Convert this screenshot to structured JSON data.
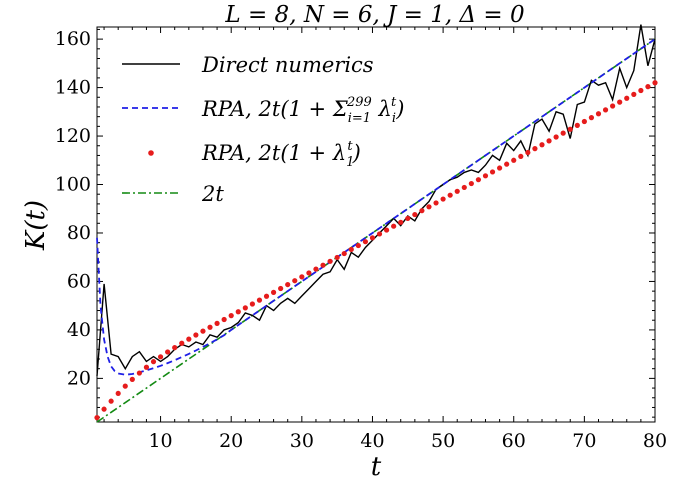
{
  "chart_data": {
    "type": "line",
    "title": "L = 8, N = 6, J = 1, Δ = 0",
    "xlabel": "t",
    "ylabel": "K(t)",
    "xlim": [
      1,
      80
    ],
    "ylim": [
      2,
      165
    ],
    "xticks": [
      10,
      20,
      30,
      40,
      50,
      60,
      70,
      80
    ],
    "yticks": [
      20,
      40,
      60,
      80,
      100,
      120,
      140,
      160
    ],
    "grid": false,
    "legend_position": "top-left",
    "colors": {
      "direct": "#000000",
      "rpa_sum": "#1f1fe6",
      "rpa_1": "#e61c1c",
      "two_t": "#138a13"
    },
    "series": [
      {
        "name": "Direct numerics",
        "style": "solid",
        "x": [
          1,
          2,
          3,
          4,
          5,
          6,
          7,
          8,
          9,
          10,
          11,
          12,
          13,
          14,
          15,
          16,
          17,
          18,
          19,
          20,
          21,
          22,
          23,
          24,
          25,
          26,
          27,
          28,
          29,
          30,
          31,
          32,
          33,
          34,
          35,
          36,
          37,
          38,
          39,
          40,
          41,
          42,
          43,
          44,
          45,
          46,
          47,
          48,
          49,
          50,
          51,
          52,
          53,
          54,
          55,
          56,
          57,
          58,
          59,
          60,
          61,
          62,
          63,
          64,
          65,
          66,
          67,
          68,
          69,
          70,
          71,
          72,
          73,
          74,
          75,
          76,
          77,
          78,
          79,
          80
        ],
        "y": [
          21,
          59,
          30,
          29,
          24,
          29,
          31,
          27,
          29,
          27,
          29,
          32,
          34,
          33,
          35,
          34,
          38,
          37,
          40,
          41,
          43,
          47,
          46,
          44,
          50,
          48,
          51,
          53,
          51,
          54,
          57,
          60,
          63,
          64,
          69,
          65,
          72,
          70,
          74,
          77,
          80,
          83,
          86,
          83,
          87,
          85,
          90,
          93,
          98,
          100,
          102,
          103,
          105,
          106,
          105,
          108,
          112,
          110,
          117,
          114,
          118,
          112,
          125,
          127,
          122,
          130,
          129,
          119,
          133,
          134,
          143,
          141,
          142,
          135,
          148,
          140,
          147,
          166,
          149,
          160
        ]
      },
      {
        "name": "RPA, 2t(1 + Σ_{i=1}^{299} λ_i^t)",
        "style": "dashed",
        "x": [
          1,
          1.5,
          2,
          2.5,
          3,
          3.5,
          4,
          5,
          6,
          7,
          8,
          9,
          10,
          11,
          12,
          13,
          14,
          15,
          16,
          17,
          18,
          19,
          20,
          22,
          24,
          26,
          28,
          30,
          35,
          40,
          45,
          50,
          55,
          60,
          65,
          70,
          75,
          80
        ],
        "y": [
          78,
          50,
          36,
          29,
          25,
          23,
          22,
          21.5,
          21.8,
          22.5,
          23.3,
          24.2,
          25.2,
          26.3,
          27.5,
          28.8,
          30.1,
          31.5,
          33,
          34.5,
          36.1,
          37.8,
          40,
          44,
          48,
          52,
          56,
          60,
          70,
          80,
          90,
          100,
          110,
          120,
          130,
          140,
          150,
          160
        ]
      },
      {
        "name": "RPA, 2t(1 + λ_1^t)",
        "style": "dots",
        "x": [
          1,
          2,
          3,
          4,
          5,
          6,
          7,
          8,
          9,
          10,
          11,
          12,
          13,
          14,
          15,
          16,
          17,
          18,
          19,
          20,
          21,
          22,
          23,
          24,
          25,
          26,
          27,
          28,
          29,
          30,
          31,
          32,
          33,
          34,
          35,
          36,
          37,
          38,
          39,
          40,
          41,
          42,
          43,
          44,
          45,
          46,
          47,
          48,
          49,
          50,
          51,
          52,
          53,
          54,
          55,
          56,
          57,
          58,
          59,
          60,
          61,
          62,
          63,
          64,
          65,
          66,
          67,
          68,
          69,
          70,
          71,
          72,
          73,
          74,
          75,
          76,
          77,
          78,
          79,
          80
        ],
        "y": [
          3.8,
          7.3,
          10.6,
          13.8,
          16.8,
          19.6,
          22.2,
          24.6,
          26.9,
          28.9,
          30.9,
          32.7,
          34.5,
          36.2,
          37.9,
          39.5,
          41.1,
          42.7,
          44.3,
          45.9,
          47.5,
          49.1,
          50.7,
          52.3,
          53.9,
          55.5,
          57.1,
          58.7,
          60.3,
          61.9,
          63.5,
          65.1,
          66.7,
          68.3,
          69.9,
          71.5,
          73.2,
          74.8,
          76.4,
          78,
          79.6,
          81.2,
          82.8,
          84.4,
          86,
          87.6,
          89.2,
          90.8,
          92.4,
          94,
          95.6,
          97.2,
          98.8,
          100.4,
          102,
          103.6,
          105.2,
          106.8,
          108.4,
          110,
          111.6,
          113.2,
          114.8,
          116.4,
          118,
          119.6,
          121.2,
          122.8,
          124.4,
          126,
          127.6,
          129.2,
          130.8,
          132.4,
          134,
          135.6,
          137.2,
          138.8,
          140.4,
          142
        ]
      },
      {
        "name": "2t",
        "style": "dashdot",
        "x": [
          1,
          80
        ],
        "y": [
          2,
          160
        ]
      }
    ]
  },
  "legend": [
    {
      "label": "Direct numerics"
    },
    {
      "label": "RPA, 2t(1 + Σ",
      "sub": "i=1",
      "sup": "299",
      "tail": " λ",
      "tail_sub": "i",
      "tail_sup": "t",
      "end": ")"
    },
    {
      "label": "RPA, 2t(1 + λ",
      "sub": "1",
      "sup": "t",
      "end": ")"
    },
    {
      "label": "2t"
    }
  ]
}
